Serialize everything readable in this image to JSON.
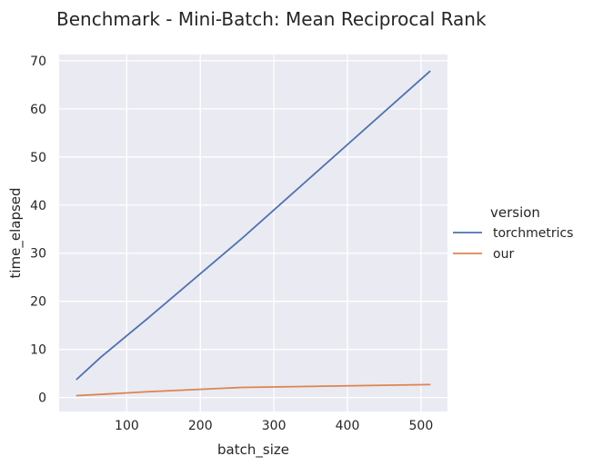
{
  "chart_data": {
    "type": "line",
    "title": "Benchmark - Mini-Batch: Mean Reciprocal Rank",
    "xlabel": "batch_size",
    "ylabel": "time_elapsed",
    "xlim": [
      8,
      536
    ],
    "ylim": [
      -2.9,
      71.3
    ],
    "xticks": [
      100,
      200,
      300,
      400,
      500
    ],
    "yticks": [
      0,
      10,
      20,
      30,
      40,
      50,
      60,
      70
    ],
    "grid": true,
    "legend": {
      "title": "version",
      "placement": "right"
    },
    "series": [
      {
        "name": "torchmetrics",
        "color": "#4c72b0",
        "x": [
          32,
          64,
          128,
          256,
          512
        ],
        "y": [
          3.8,
          8.3,
          16.4,
          33.0,
          67.8
        ]
      },
      {
        "name": "our",
        "color": "#dd8452",
        "x": [
          32,
          64,
          128,
          256,
          512
        ],
        "y": [
          0.4,
          0.65,
          1.2,
          2.1,
          2.7
        ]
      }
    ]
  }
}
